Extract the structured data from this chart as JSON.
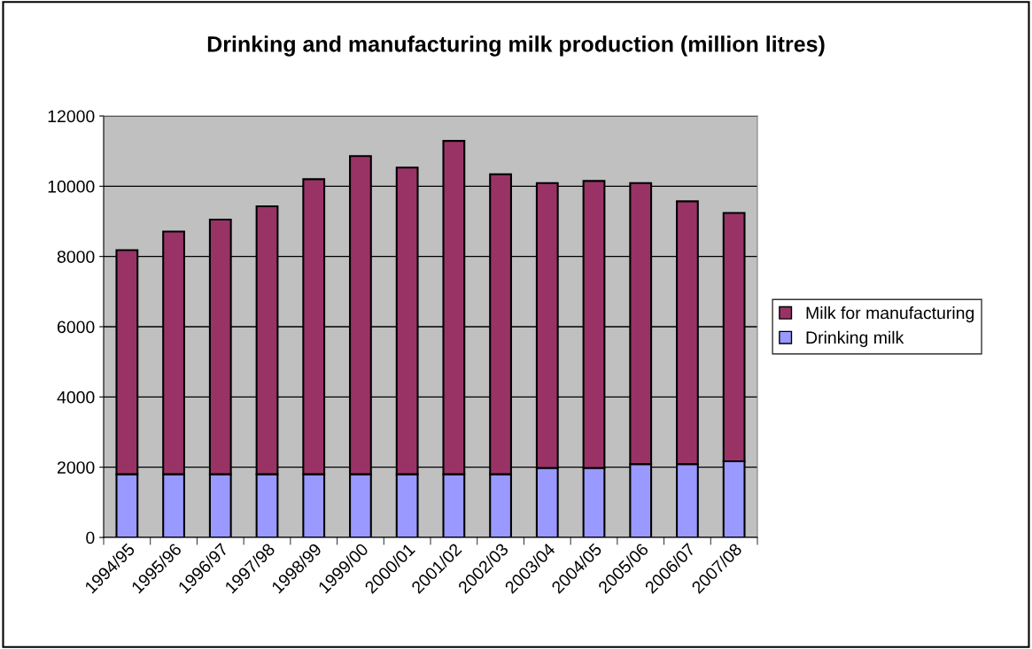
{
  "chart_data": {
    "type": "bar",
    "title": "Drinking and manufacturing milk production (million litres)",
    "stacked": true,
    "categories": [
      "1994/95",
      "1995/96",
      "1996/97",
      "1997/98",
      "1998/99",
      "1999/00",
      "2000/01",
      "2001/02",
      "2002/03",
      "2003/04",
      "2004/05",
      "2005/06",
      "2006/07",
      "2007/08"
    ],
    "series": [
      {
        "name": "Drinking milk",
        "color": "#9999ff",
        "values": [
          1800,
          1800,
          1800,
          1800,
          1800,
          1800,
          1800,
          1800,
          1800,
          1980,
          1980,
          2090,
          2090,
          2170
        ]
      },
      {
        "name": "Milk for manufacturing",
        "color": "#993366",
        "values": [
          6380,
          6910,
          7250,
          7630,
          8400,
          9060,
          8730,
          9490,
          8540,
          8110,
          8170,
          8000,
          7480,
          7070
        ]
      }
    ],
    "ylim": [
      0,
      12000
    ],
    "yticks": [
      0,
      2000,
      4000,
      6000,
      8000,
      10000,
      12000
    ],
    "grid": "y",
    "legend": "right"
  }
}
